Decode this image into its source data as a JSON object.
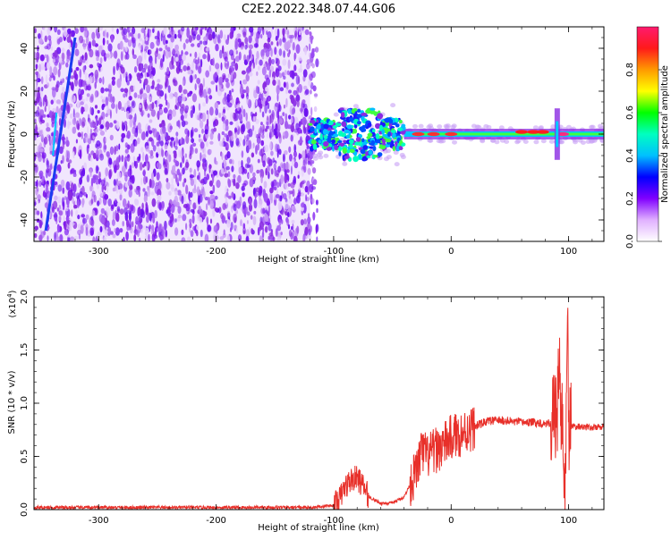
{
  "title": "C2E2.2022.348.07.44.G06",
  "chart_data": [
    {
      "type": "heatmap",
      "xlabel": "Height of straight line (km)",
      "ylabel": "Frequency (Hz)",
      "xlim": [
        -355,
        130
      ],
      "ylim": [
        -50,
        50
      ],
      "xticks": [
        -300,
        -200,
        -100,
        0,
        100
      ],
      "yticks": [
        -40,
        -20,
        0,
        20,
        40
      ],
      "colorbar": {
        "label": "Normalized spectral amplitude",
        "range": [
          0.0,
          1.0
        ],
        "ticks": [
          "0.0",
          "0.2",
          "0.4",
          "0.6",
          "0.8"
        ],
        "colors": [
          "#ff1a6e",
          "#ff1a1a",
          "#ff9a00",
          "#ffff00",
          "#00ff00",
          "#00ffc0",
          "#00c0ff",
          "#0000ff",
          "#8000ff",
          "#e0b0ff",
          "#ffffff"
        ]
      },
      "features": {
        "noise_region_x": [
          -355,
          -120
        ],
        "main_band_center_hz": 0,
        "streak_x": [
          -345,
          -320
        ],
        "streak_y": [
          -45,
          45
        ]
      }
    },
    {
      "type": "line",
      "xlabel": "Height of straight line (km)",
      "ylabel": "SNR (10 * v/v)",
      "yscale_label": "(x10",
      "yscale_exp": "4",
      "xlim": [
        -355,
        130
      ],
      "ylim": [
        0,
        2.0
      ],
      "xticks": [
        -300,
        -200,
        -100,
        0,
        100
      ],
      "yticks": [
        "0.0",
        "0.5",
        "1.0",
        "1.5",
        "2.0"
      ],
      "color": "#e8302a",
      "series": [
        {
          "x": [
            -355,
            -300,
            -200,
            -120,
            -100,
            -95,
            -90,
            -85,
            -80,
            -75,
            -70,
            -60,
            -50,
            -40,
            -30,
            -25,
            -20,
            -10,
            -5,
            0,
            10,
            20,
            30,
            40,
            50,
            60,
            70,
            80,
            85,
            90,
            92,
            95,
            97,
            99,
            100,
            103,
            110,
            120,
            130
          ],
          "y": [
            0.02,
            0.02,
            0.02,
            0.02,
            0.04,
            0.1,
            0.22,
            0.28,
            0.3,
            0.22,
            0.12,
            0.06,
            0.06,
            0.12,
            0.35,
            0.55,
            0.5,
            0.58,
            0.62,
            0.68,
            0.72,
            0.78,
            0.83,
            0.84,
            0.83,
            0.82,
            0.82,
            0.81,
            0.82,
            0.9,
            1.35,
            0.6,
            0.05,
            2.0,
            0.8,
            0.78,
            0.78,
            0.77,
            0.78
          ]
        }
      ]
    }
  ]
}
